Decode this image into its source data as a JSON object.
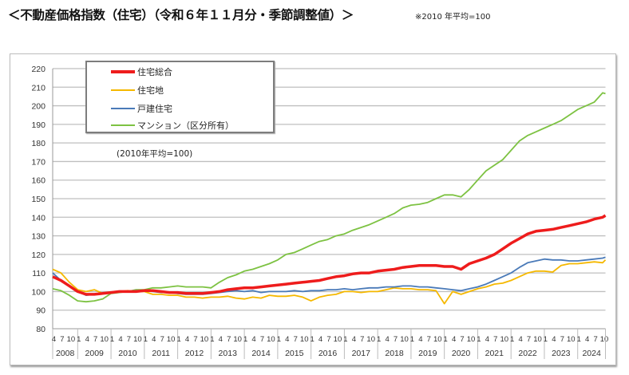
{
  "title": "＜不動産価格指数（住宅）（令和６年１１月分・季節調整値）＞",
  "note": "※2010 年平均=100",
  "chart_data": {
    "type": "line",
    "base_label": "(2010年平均=100)",
    "ylim": [
      80,
      220
    ],
    "y_ticks": [
      "80",
      "90",
      "100",
      "110",
      "120",
      "130",
      "140",
      "150",
      "160",
      "170",
      "180",
      "190",
      "200",
      "210",
      "220"
    ],
    "grid": true,
    "legend_placement": "top-left",
    "month_tick_labels": [
      "1",
      "4",
      "7",
      "10"
    ],
    "years": [
      "2008",
      "2009",
      "2010",
      "2011",
      "2012",
      "2013",
      "2014",
      "2015",
      "2016",
      "2017",
      "2018",
      "2019",
      "2020",
      "2021",
      "2022",
      "2023",
      "2024"
    ],
    "x": [
      "2008-04",
      "2008-07",
      "2008-10",
      "2009-01",
      "2009-04",
      "2009-07",
      "2009-10",
      "2010-01",
      "2010-04",
      "2010-07",
      "2010-10",
      "2011-01",
      "2011-04",
      "2011-07",
      "2011-10",
      "2012-01",
      "2012-04",
      "2012-07",
      "2012-10",
      "2013-01",
      "2013-04",
      "2013-07",
      "2013-10",
      "2014-01",
      "2014-04",
      "2014-07",
      "2014-10",
      "2015-01",
      "2015-04",
      "2015-07",
      "2015-10",
      "2016-01",
      "2016-04",
      "2016-07",
      "2016-10",
      "2017-01",
      "2017-04",
      "2017-07",
      "2017-10",
      "2018-01",
      "2018-04",
      "2018-07",
      "2018-10",
      "2019-01",
      "2019-04",
      "2019-07",
      "2019-10",
      "2020-01",
      "2020-04",
      "2020-07",
      "2020-10",
      "2021-01",
      "2021-04",
      "2021-07",
      "2021-10",
      "2022-01",
      "2022-04",
      "2022-07",
      "2022-10",
      "2023-01",
      "2023-04",
      "2023-07",
      "2023-10",
      "2024-01",
      "2024-04",
      "2024-07",
      "2024-10",
      "2024-11"
    ],
    "series": [
      {
        "name": "住宅総合",
        "color": "#ee1c1c",
        "width": 3.5,
        "values": [
          108,
          106,
          103,
          100,
          98.5,
          98.5,
          99,
          99.5,
          100,
          100,
          100,
          100.5,
          100.5,
          100,
          99.5,
          99.5,
          99,
          99,
          99,
          99.5,
          100,
          101,
          101.5,
          102,
          102,
          102.5,
          103,
          103.5,
          104,
          104.5,
          105,
          105.5,
          106,
          107,
          108,
          108.5,
          109.5,
          110,
          110,
          111,
          111.5,
          112,
          113,
          113.5,
          114,
          114,
          114,
          113.5,
          113.5,
          112,
          115,
          116.5,
          118,
          120,
          123,
          126,
          128.5,
          131,
          132.5,
          133,
          133.5,
          134.5,
          135.5,
          136.5,
          137.5,
          139,
          140,
          141
        ]
      },
      {
        "name": "住宅地",
        "color": "#f5b800",
        "width": 1.8,
        "values": [
          112,
          110,
          105,
          101,
          100,
          101,
          99,
          99.5,
          100,
          100.5,
          100,
          100,
          98.5,
          98.5,
          98,
          98,
          97,
          97,
          96.5,
          97,
          97,
          97.5,
          96.5,
          96,
          97,
          96.5,
          98,
          97.5,
          97.5,
          98,
          97,
          95,
          97,
          98,
          98.5,
          100,
          100,
          99.5,
          100,
          100,
          101,
          102,
          101.5,
          101.5,
          101,
          101,
          100.5,
          93.5,
          100,
          98.5,
          100,
          101.5,
          102.5,
          104,
          104.5,
          106,
          108,
          110,
          111,
          111,
          110.5,
          114,
          115,
          115,
          115.5,
          116,
          115.5,
          117
        ]
      },
      {
        "name": "戸建住宅",
        "color": "#4a7ab8",
        "width": 1.8,
        "values": [
          110,
          106,
          103,
          100,
          98,
          98.5,
          99,
          99.5,
          100,
          100,
          100.5,
          100.5,
          100,
          99.5,
          99.5,
          99,
          98.5,
          98.5,
          98.5,
          99,
          99.5,
          100,
          100.5,
          100,
          100.5,
          99.5,
          100,
          100,
          100,
          100.5,
          100,
          100.5,
          100.5,
          101,
          101,
          101.5,
          101,
          101.5,
          102,
          102,
          102.5,
          102.5,
          103,
          103,
          102.5,
          102.5,
          102,
          101.5,
          101,
          100.5,
          101.5,
          102.5,
          104,
          106,
          108,
          110,
          113,
          115.5,
          116.5,
          117.5,
          117,
          117,
          116.5,
          116.5,
          117,
          117.5,
          118,
          118.5
        ]
      },
      {
        "name": "マンション（区分所有）",
        "color": "#7dc242",
        "width": 1.8,
        "values": [
          101.5,
          100.5,
          98,
          95,
          94.5,
          95,
          96,
          99,
          99.5,
          100,
          101,
          101,
          102,
          102,
          102.5,
          103,
          102.5,
          102.5,
          102.5,
          102,
          105,
          107.5,
          109,
          111,
          112,
          113.5,
          115,
          117,
          120,
          121,
          123,
          125,
          127,
          128,
          130,
          131,
          133,
          134.5,
          136,
          138,
          140,
          142,
          145,
          146.5,
          147,
          148,
          150,
          152,
          152,
          151,
          155,
          160,
          165,
          168,
          171,
          176,
          181,
          184,
          186,
          188,
          190,
          192,
          195,
          198,
          200,
          202,
          207,
          206.5
        ]
      }
    ]
  }
}
